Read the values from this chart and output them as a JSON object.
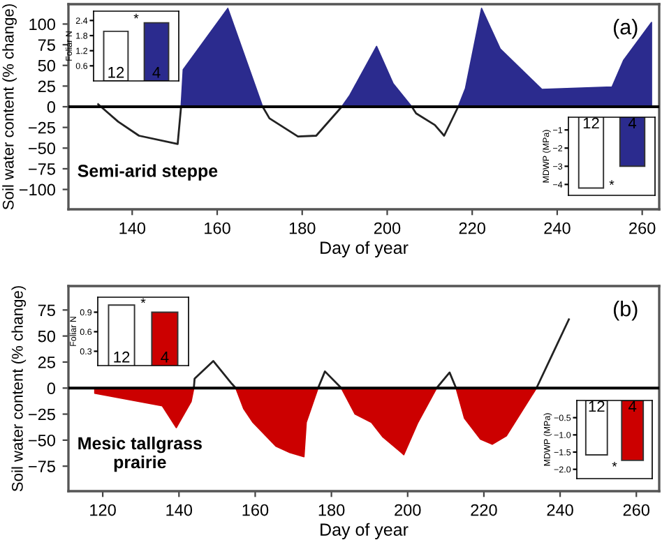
{
  "chart_data": [
    {
      "type": "line",
      "xlabel": "Day of year",
      "ylabel": "Soil water content (% change)",
      "xlim": [
        125,
        264
      ],
      "ylim": [
        -124,
        124
      ],
      "xticks": [
        140,
        160,
        180,
        200,
        220,
        240,
        260
      ],
      "yticks": [
        -100,
        -75,
        -50,
        -25,
        0,
        25,
        50,
        75,
        100
      ],
      "grid": false,
      "legend": false,
      "annotations": [
        "(a)",
        "Semi-arid steppe"
      ],
      "ref_lines": [
        {
          "axis": "y",
          "value": 0,
          "color": "#000000"
        }
      ],
      "series": [
        {
          "type": "area",
          "color": "#2b2b8e",
          "x": [
            151.5,
            152,
            162.5,
            170.7,
            180,
            189.3,
            191.2,
            197.5,
            201.4,
            205.8,
            211,
            216.7,
            218.4,
            222.2,
            226.6,
            236.4,
            252.9,
            255.6,
            262.2
          ],
          "values": [
            0,
            45,
            119,
            0,
            null,
            0,
            14,
            73,
            28,
            0,
            null,
            0,
            22,
            119,
            70,
            21,
            24,
            56,
            102
          ]
        },
        {
          "type": "line",
          "color": "#222222",
          "x": [
            132,
            136.7,
            141.6,
            150.7,
            151.5,
            160,
            170.7,
            172.3,
            179,
            183.3,
            189.3,
            195,
            205.8,
            206.8,
            211.2,
            213.4,
            216.7
          ],
          "values": [
            3,
            -18,
            -35,
            -45,
            0,
            null,
            0,
            -14,
            -36,
            -35,
            0,
            null,
            0,
            -8,
            -22,
            -35,
            0
          ]
        }
      ]
    },
    {
      "type": "bar",
      "ylabel": "Foliar N",
      "categories": [
        "12",
        "4"
      ],
      "values": [
        1.97,
        2.31
      ],
      "colors": [
        "#ffffff",
        "#2b2b8e"
      ],
      "ylim": [
        0,
        2.77
      ],
      "yticks": [
        0.6,
        1.2,
        1.8,
        2.4
      ],
      "annotations": [
        "*"
      ]
    },
    {
      "type": "bar",
      "ylabel": "MDWP (MPa)",
      "categories": [
        "12",
        "4"
      ],
      "values": [
        -4.2,
        -3.0
      ],
      "colors": [
        "#ffffff",
        "#2b2b8e"
      ],
      "ylim": [
        -4.6,
        -0.3
      ],
      "yticks": [
        {
          "value": -1,
          "label": "−1"
        },
        {
          "value": -2,
          "label": "−2"
        },
        {
          "value": -3,
          "label": "−3"
        },
        {
          "value": -4,
          "label": "−4"
        }
      ],
      "annotations": [
        "*"
      ]
    },
    {
      "type": "line",
      "xlabel": "Day of year",
      "ylabel": "Soil water content (% change)",
      "xlim": [
        111,
        266
      ],
      "ylim": [
        -99,
        98
      ],
      "xticks": [
        120,
        140,
        160,
        180,
        200,
        220,
        240,
        260
      ],
      "yticks": [
        -75,
        -50,
        -25,
        0,
        25,
        50,
        75
      ],
      "grid": false,
      "legend": false,
      "annotations": [
        "(b)",
        "Mesic tallgrass\nprairie"
      ],
      "ref_lines": [
        {
          "axis": "y",
          "value": 0,
          "color": "#000000"
        }
      ],
      "series": [
        {
          "type": "area",
          "color": "#cc0000",
          "x": [
            117.9,
            135.6,
            139.3,
            143.2,
            143.9,
            150,
            154.9,
            157,
            159.4,
            165.5,
            169.1,
            172.8,
            173.4,
            176.5,
            180,
            182.6,
            186.2,
            190.5,
            193.5,
            198.4,
            199,
            202.7,
            207.6,
            210,
            212.7,
            214.9,
            219.1,
            222.2,
            225.9,
            233.8
          ],
          "values": [
            -5,
            -17,
            -38,
            -13,
            0,
            null,
            0,
            -20,
            -33,
            -56,
            -62,
            -66,
            -33,
            0,
            null,
            0,
            -25,
            -33,
            -47,
            -62,
            -64,
            -33,
            0,
            null,
            0,
            -29,
            -49,
            -54,
            -46,
            0
          ]
        },
        {
          "type": "line",
          "color": "#222222",
          "x": [
            143.9,
            144.1,
            149,
            153.9,
            154.9,
            165,
            176.5,
            178.3,
            182.6,
            195,
            207.6,
            211,
            212.7,
            225,
            233.8,
            242.3
          ],
          "values": [
            0,
            9,
            26,
            4,
            0,
            null,
            0,
            16,
            0,
            null,
            0,
            15,
            0,
            null,
            0,
            66
          ]
        }
      ]
    },
    {
      "type": "bar",
      "ylabel": "Foliar N",
      "categories": [
        "12",
        "4"
      ],
      "values": [
        1.01,
        0.9
      ],
      "colors": [
        "#ffffff",
        "#cc0000"
      ],
      "ylim": [
        0.08,
        1.13
      ],
      "yticks": [
        0.3,
        0.6,
        0.9
      ],
      "annotations": [
        "*"
      ]
    },
    {
      "type": "bar",
      "ylabel": "MDWP (MPa)",
      "categories": [
        "12",
        "4"
      ],
      "values": [
        -1.58,
        -1.74
      ],
      "colors": [
        "#ffffff",
        "#cc0000"
      ],
      "ylim": [
        -2.27,
        0
      ],
      "yticks": [
        {
          "value": -0.5,
          "label": "−0.5"
        },
        {
          "value": -1.0,
          "label": "−1.0"
        },
        {
          "value": -1.5,
          "label": "−1.5"
        },
        {
          "value": -2.0,
          "label": "−2.0"
        }
      ],
      "annotations": [
        "*"
      ]
    }
  ]
}
